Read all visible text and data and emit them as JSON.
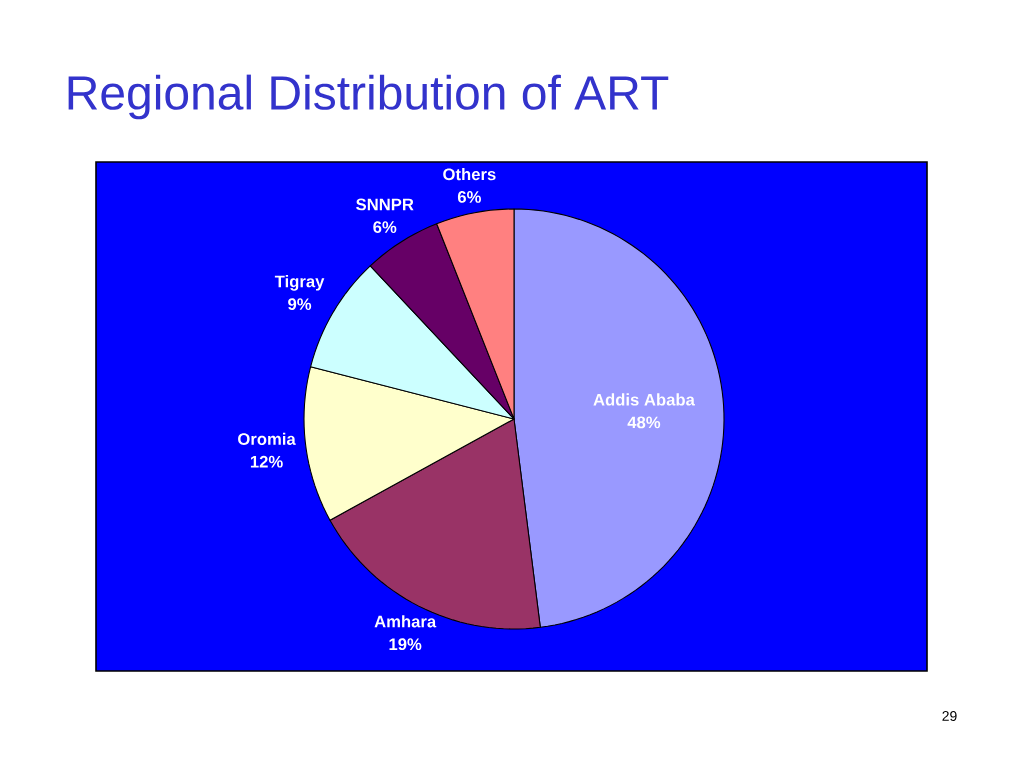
{
  "chart_data": {
    "type": "pie",
    "title": "Regional Distribution of ART",
    "categories": [
      "Addis Ababa",
      "Amhara",
      "Oromia",
      "Tigray",
      "SNNPR",
      "Others"
    ],
    "values": [
      48,
      19,
      12,
      9,
      6,
      6
    ],
    "value_labels": [
      "48%",
      "19%",
      "12%",
      "9%",
      "6%",
      "6%"
    ],
    "colors": [
      "#9999ff",
      "#993366",
      "#ffffcc",
      "#ccffff",
      "#660066",
      "#ff8080"
    ],
    "annotations": [
      "29"
    ]
  }
}
